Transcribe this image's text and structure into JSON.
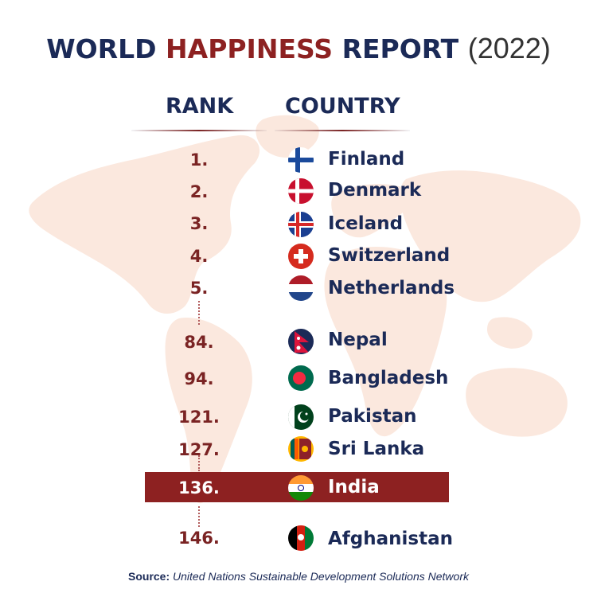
{
  "title": {
    "part1": "WORLD",
    "part2": "HAPPINESS",
    "part3": "REPORT",
    "year": "(2022)"
  },
  "headers": {
    "rank": "RANK",
    "country": "COUNTRY"
  },
  "rows": [
    {
      "rank": "1.",
      "country": "Finland",
      "flag_icon": "finland-flag-icon"
    },
    {
      "rank": "2.",
      "country": "Denmark",
      "flag_icon": "denmark-flag-icon"
    },
    {
      "rank": "3.",
      "country": "Iceland",
      "flag_icon": "iceland-flag-icon"
    },
    {
      "rank": "4.",
      "country": "Switzerland",
      "flag_icon": "switzerland-flag-icon"
    },
    {
      "rank": "5.",
      "country": "Netherlands",
      "flag_icon": "netherlands-flag-icon"
    },
    {
      "rank": "84.",
      "country": "Nepal",
      "flag_icon": "nepal-flag-icon"
    },
    {
      "rank": "94.",
      "country": "Bangladesh",
      "flag_icon": "bangladesh-flag-icon"
    },
    {
      "rank": "121.",
      "country": "Pakistan",
      "flag_icon": "pakistan-flag-icon"
    },
    {
      "rank": "127.",
      "country": "Sri Lanka",
      "flag_icon": "sri-lanka-flag-icon"
    },
    {
      "rank": "136.",
      "country": "India",
      "flag_icon": "india-flag-icon",
      "highlighted": true
    },
    {
      "rank": "146.",
      "country": "Afghanistan",
      "flag_icon": "afghanistan-flag-icon"
    }
  ],
  "source": {
    "label": "Source:",
    "text": "United Nations Sustainable Development Solutions Network"
  },
  "colors": {
    "navy": "#1b2a57",
    "maroon": "#8d2121",
    "map": "#fbe6dc"
  }
}
